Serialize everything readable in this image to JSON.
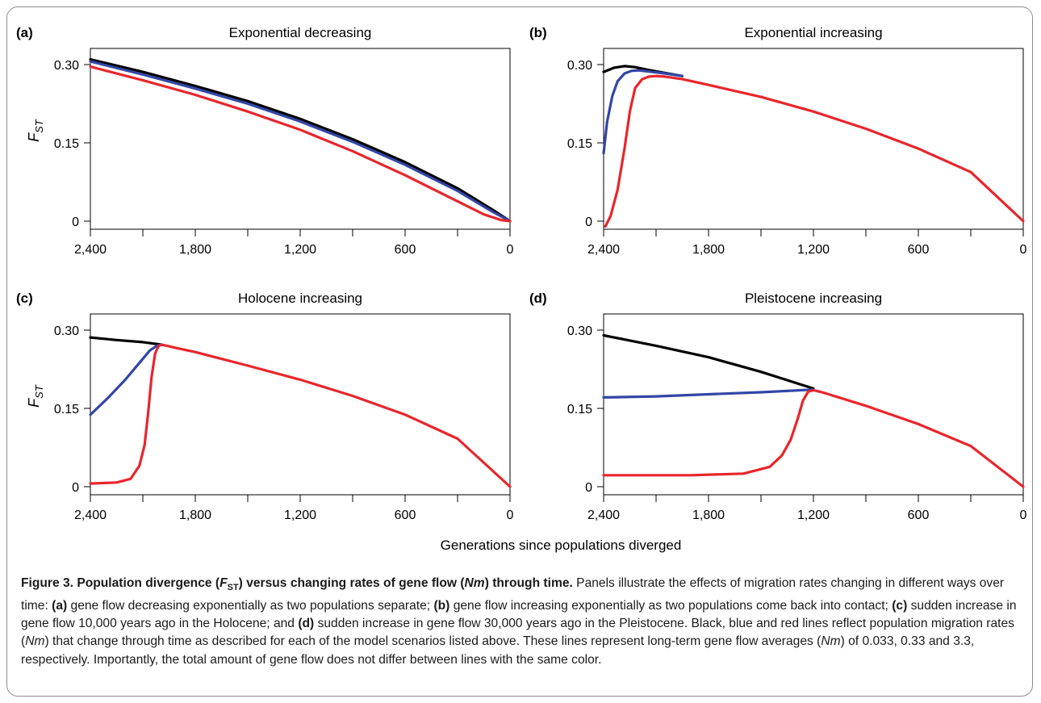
{
  "figure": {
    "common_xlabel": "Generations since populations diverged",
    "colors": {
      "black": "#000000",
      "blue": "#3346a5",
      "red": "#e8262c"
    }
  },
  "chart_data": [
    {
      "type": "line",
      "panel_label": "(a)",
      "title": "Exponential decreasing",
      "ylabel": "F_ST",
      "xlim": [
        2400,
        0
      ],
      "ylim": [
        0,
        0.3
      ],
      "xticks": [
        "2,400",
        "1,800",
        "1,200",
        "600",
        "0"
      ],
      "yticks": [
        "0.30",
        "0.15",
        "0"
      ],
      "series": [
        {
          "color": "black",
          "x": [
            2400,
            2100,
            1800,
            1500,
            1200,
            900,
            600,
            300,
            100,
            0
          ],
          "y": [
            0.31,
            0.286,
            0.259,
            0.23,
            0.196,
            0.157,
            0.113,
            0.063,
            0.022,
            0.0
          ]
        },
        {
          "color": "blue",
          "x": [
            2400,
            2100,
            1800,
            1500,
            1200,
            900,
            600,
            300,
            100,
            0
          ],
          "y": [
            0.306,
            0.281,
            0.254,
            0.225,
            0.191,
            0.152,
            0.108,
            0.058,
            0.018,
            0.0
          ]
        },
        {
          "color": "red",
          "x": [
            2400,
            2100,
            1800,
            1500,
            1200,
            900,
            600,
            300,
            150,
            50,
            0
          ],
          "y": [
            0.296,
            0.27,
            0.242,
            0.21,
            0.175,
            0.134,
            0.088,
            0.038,
            0.013,
            0.002,
            0.0
          ]
        }
      ]
    },
    {
      "type": "line",
      "panel_label": "(b)",
      "title": "Exponential increasing",
      "ylabel": "",
      "xlim": [
        2400,
        0
      ],
      "ylim": [
        0,
        0.3
      ],
      "xticks": [
        "2,400",
        "1,800",
        "1,200",
        "600",
        "0"
      ],
      "yticks": [
        "0.30",
        "0.15",
        "0"
      ],
      "series": [
        {
          "color": "black",
          "x": [
            2400,
            2340,
            2280,
            2220,
            2150,
            2050,
            1950
          ],
          "y": [
            0.286,
            0.294,
            0.297,
            0.295,
            0.29,
            0.284,
            0.278
          ]
        },
        {
          "color": "blue",
          "x": [
            2400,
            2380,
            2350,
            2320,
            2280,
            2240,
            2200,
            2150,
            2050,
            1950
          ],
          "y": [
            0.13,
            0.19,
            0.24,
            0.268,
            0.283,
            0.288,
            0.289,
            0.287,
            0.283,
            0.278
          ]
        },
        {
          "color": "red",
          "x": [
            2390,
            2360,
            2320,
            2280,
            2250,
            2220,
            2180,
            2140,
            2100,
            2050,
            1950,
            1800,
            1500,
            1200,
            900,
            600,
            300,
            0
          ],
          "y": [
            -0.01,
            0.01,
            0.06,
            0.14,
            0.21,
            0.255,
            0.272,
            0.277,
            0.278,
            0.277,
            0.272,
            0.261,
            0.238,
            0.21,
            0.177,
            0.139,
            0.094,
            0.0
          ]
        }
      ]
    },
    {
      "type": "line",
      "panel_label": "(c)",
      "title": "Holocene increasing",
      "ylabel": "F_ST",
      "xlim": [
        2400,
        0
      ],
      "ylim": [
        0,
        0.3
      ],
      "xticks": [
        "2,400",
        "1,800",
        "1,200",
        "600",
        "0"
      ],
      "yticks": [
        "0.30",
        "0.15",
        "0"
      ],
      "series": [
        {
          "color": "black",
          "x": [
            2400,
            2250,
            2100,
            1990
          ],
          "y": [
            0.286,
            0.281,
            0.277,
            0.272
          ]
        },
        {
          "color": "blue",
          "x": [
            2400,
            2300,
            2200,
            2120,
            2060,
            2020,
            1990
          ],
          "y": [
            0.138,
            0.17,
            0.205,
            0.237,
            0.261,
            0.27,
            0.272
          ]
        },
        {
          "color": "red",
          "x": [
            2400,
            2250,
            2170,
            2120,
            2090,
            2070,
            2050,
            2030,
            2010,
            1990,
            1900,
            1800,
            1500,
            1200,
            900,
            600,
            300,
            0
          ],
          "y": [
            0.006,
            0.008,
            0.015,
            0.04,
            0.08,
            0.14,
            0.21,
            0.255,
            0.27,
            0.272,
            0.265,
            0.258,
            0.232,
            0.205,
            0.174,
            0.138,
            0.092,
            0.0
          ]
        }
      ]
    },
    {
      "type": "line",
      "panel_label": "(d)",
      "title": "Pleistocene increasing",
      "ylabel": "",
      "xlim": [
        2400,
        0
      ],
      "ylim": [
        0,
        0.3
      ],
      "xticks": [
        "2,400",
        "1,800",
        "1,200",
        "600",
        "0"
      ],
      "yticks": [
        "0.30",
        "0.15",
        "0"
      ],
      "series": [
        {
          "color": "black",
          "x": [
            2400,
            2100,
            1800,
            1500,
            1200
          ],
          "y": [
            0.29,
            0.27,
            0.248,
            0.22,
            0.188
          ]
        },
        {
          "color": "blue",
          "x": [
            2400,
            2100,
            1800,
            1500,
            1200
          ],
          "y": [
            0.171,
            0.173,
            0.177,
            0.181,
            0.186
          ]
        },
        {
          "color": "red",
          "x": [
            2400,
            1900,
            1600,
            1450,
            1380,
            1330,
            1290,
            1260,
            1230,
            1200,
            1150,
            900,
            600,
            300,
            0
          ],
          "y": [
            0.022,
            0.022,
            0.025,
            0.038,
            0.06,
            0.09,
            0.13,
            0.165,
            0.182,
            0.185,
            0.181,
            0.155,
            0.12,
            0.078,
            0.0
          ]
        }
      ]
    }
  ],
  "caption": {
    "fig_label": "Figure 3. Population divergence (",
    "fig_F": "F",
    "fig_sub": "ST",
    "fig_mid": ") versus changing rates of gene flow (",
    "fig_nm": "Nm",
    "fig_end": ") through time.",
    "t1": " Panels illustrate the effects of migration rates changing in different ways over time: ",
    "la": "(a)",
    "ta": " gene flow decreasing exponentially as two populations separate; ",
    "lb": "(b)",
    "tb": " gene flow increasing exponentially as two populations come back into contact; ",
    "lc": "(c)",
    "tc": " sudden increase in gene flow 10,000 years ago in the Holocene; and ",
    "ld": "(d)",
    "td": " sudden increase in gene flow 30,000 years ago in the Pleistocene. Black, blue and red lines reflect population migration rates (",
    "nm1": "Nm",
    "t2": ") that change through time as described for each of the model scenarios listed above. These lines represent long-term gene flow averages (",
    "nm2": "Nm",
    "t3": ") of 0.033, 0.33 and 3.3, respectively. Importantly, the total amount of gene flow does not differ between lines with the same color."
  }
}
